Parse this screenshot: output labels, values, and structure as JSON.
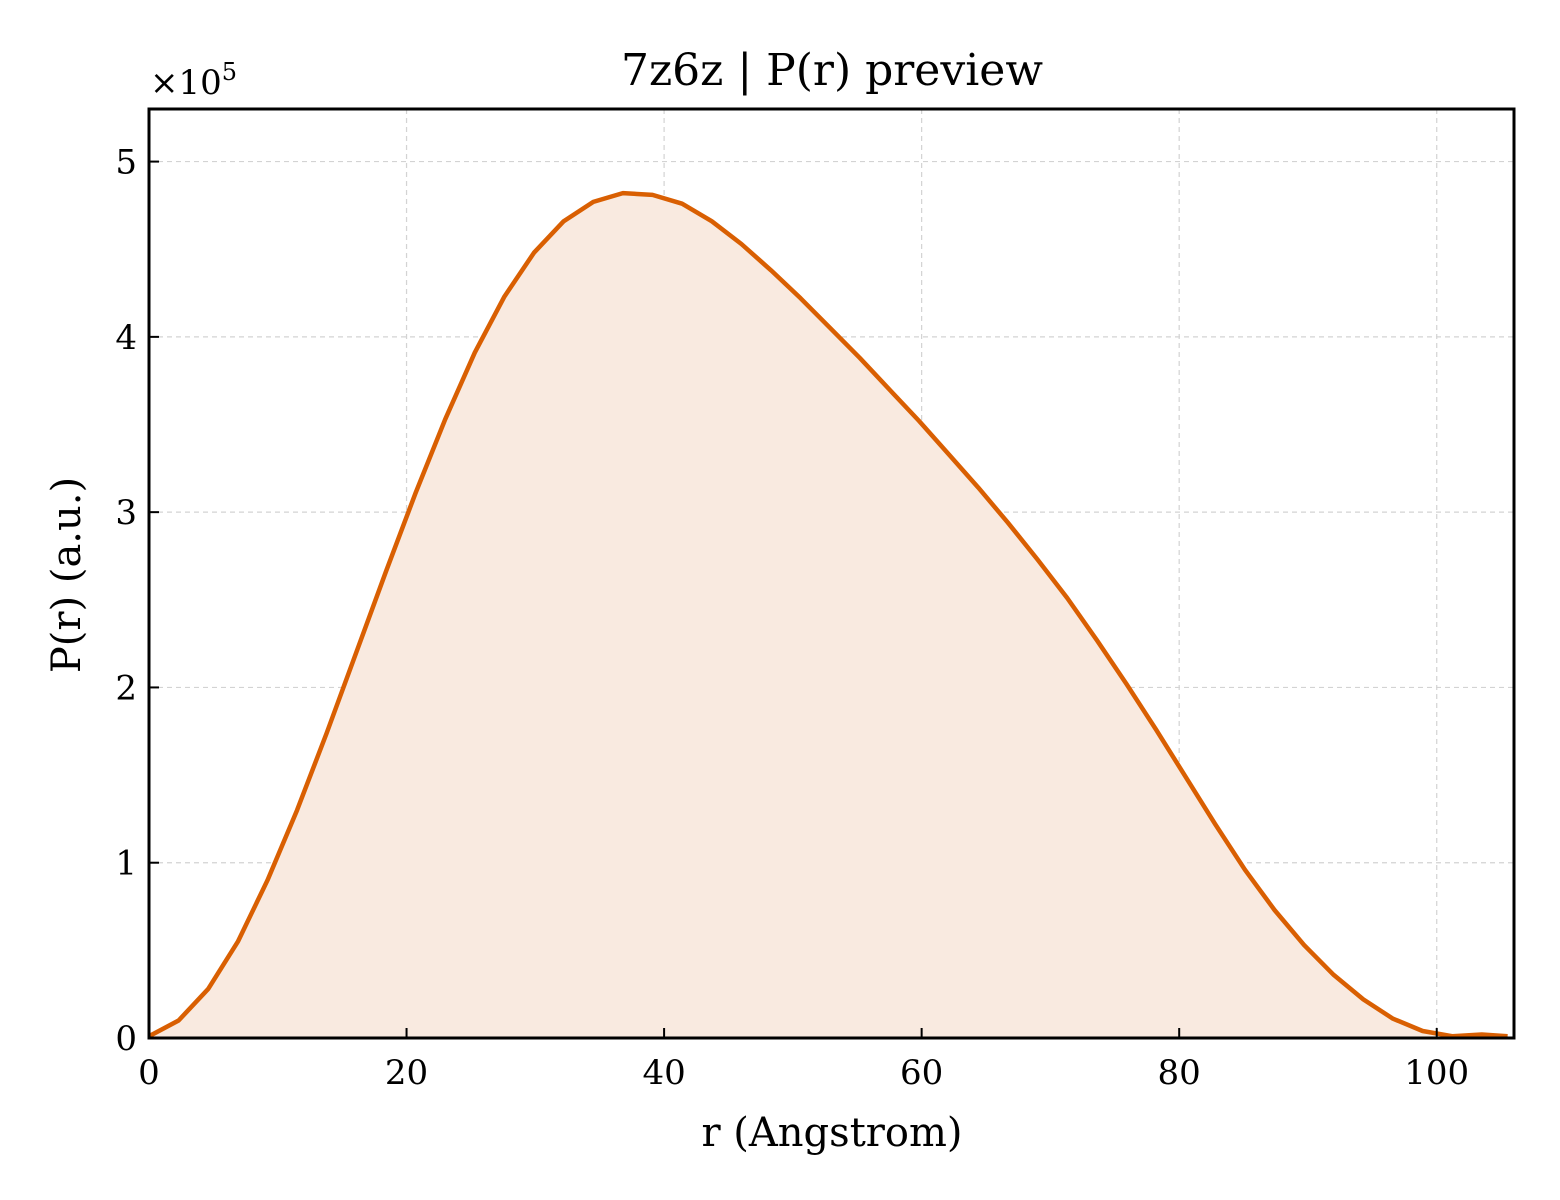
{
  "chart_data": {
    "type": "area",
    "title": "7z6z | P(r) preview",
    "xlabel": "r (Angstrom)",
    "ylabel": "P(r) (a.u.)",
    "y_offset_label": {
      "base": "×10",
      "exponent": "5"
    },
    "xlim": [
      0,
      106
    ],
    "ylim": [
      0,
      5.3
    ],
    "y_scale_factor": 100000,
    "x_ticks": [
      0,
      20,
      40,
      60,
      80,
      100
    ],
    "x_tick_labels": [
      "0",
      "20",
      "40",
      "60",
      "80",
      "100"
    ],
    "y_ticks": [
      0,
      1,
      2,
      3,
      4,
      5
    ],
    "y_tick_labels": [
      "0",
      "1",
      "2",
      "3",
      "4",
      "5"
    ],
    "grid": true,
    "colors": {
      "line": "#d95f02",
      "fill": "#f9eae0"
    },
    "series": [
      {
        "x": [
          0,
          2.3,
          4.6,
          6.9,
          9.2,
          11.5,
          13.8,
          16.1,
          18.4,
          20.7,
          23.0,
          25.3,
          27.6,
          29.9,
          32.2,
          34.5,
          36.8,
          39.1,
          41.4,
          43.7,
          46.0,
          48.3,
          50.6,
          52.9,
          55.2,
          57.5,
          59.8,
          62.1,
          64.4,
          66.7,
          69.0,
          71.3,
          73.6,
          75.9,
          78.2,
          80.5,
          82.8,
          85.1,
          87.4,
          89.7,
          92.0,
          94.3,
          96.6,
          98.9,
          101.2,
          103.5,
          105.5
        ],
        "y": [
          0.01,
          0.1,
          0.28,
          0.55,
          0.9,
          1.3,
          1.74,
          2.2,
          2.66,
          3.11,
          3.53,
          3.91,
          4.23,
          4.48,
          4.66,
          4.77,
          4.82,
          4.81,
          4.76,
          4.66,
          4.53,
          4.38,
          4.22,
          4.05,
          3.88,
          3.7,
          3.52,
          3.33,
          3.14,
          2.94,
          2.73,
          2.51,
          2.27,
          2.02,
          1.76,
          1.49,
          1.22,
          0.96,
          0.73,
          0.53,
          0.36,
          0.22,
          0.11,
          0.04,
          0.01,
          0.02,
          0.01
        ]
      }
    ]
  }
}
